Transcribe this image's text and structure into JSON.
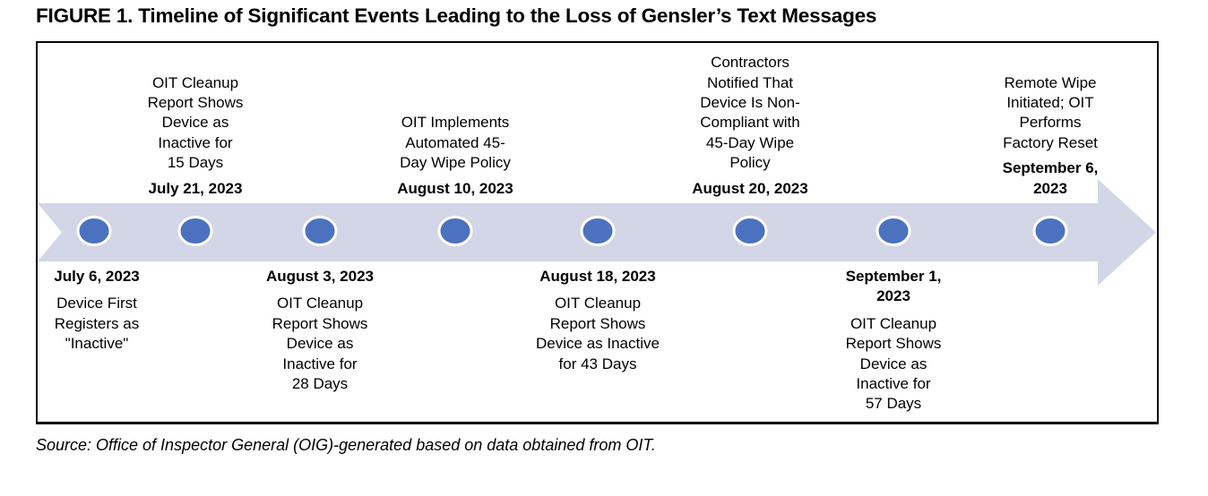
{
  "title": "FIGURE 1. Timeline of Significant Events Leading to the Loss of Gensler’s Text Messages",
  "source_note": "Source: Office of Inspector General (OIG)-generated based on data obtained from OIT.",
  "colors": {
    "arrow_band": "#D2D6E6",
    "marker_fill": "#4C72BF",
    "marker_ring": "#FFFFFF",
    "box_border": "#000000",
    "text": "#000000"
  },
  "timeline": {
    "type": "timeline",
    "direction": "left-to-right",
    "events": [
      {
        "date": "July 6, 2023",
        "description": "Device First\nRegisters as\n\"Inactive\"",
        "position": "below"
      },
      {
        "date": "July 21, 2023",
        "description": "OIT Cleanup\nReport Shows\nDevice as\nInactive for\n15 Days",
        "position": "above"
      },
      {
        "date": "August 3, 2023",
        "description": "OIT Cleanup\nReport Shows\nDevice as\nInactive for\n28 Days",
        "position": "below"
      },
      {
        "date": "August 10, 2023",
        "description": "OIT Implements\nAutomated 45-\nDay Wipe Policy",
        "position": "above"
      },
      {
        "date": "August 18, 2023",
        "description": "OIT Cleanup\nReport Shows\nDevice as Inactive\nfor 43 Days",
        "position": "below"
      },
      {
        "date": "August 20, 2023",
        "description": "Contractors\nNotified That\nDevice Is Non-\nCompliant with\n45-Day Wipe\nPolicy",
        "position": "above"
      },
      {
        "date": "September 1,\n2023",
        "description": "OIT Cleanup\nReport Shows\nDevice as\nInactive for\n57 Days",
        "position": "below"
      },
      {
        "date": "September 6,\n2023",
        "description": "Remote Wipe\nInitiated; OIT\nPerforms\nFactory Reset",
        "position": "above"
      }
    ]
  }
}
